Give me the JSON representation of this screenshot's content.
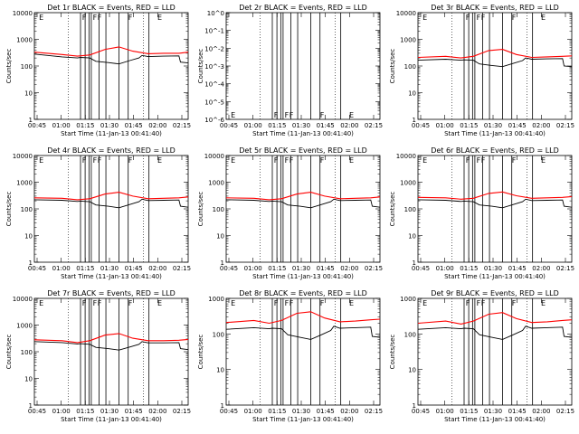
{
  "chart_data": [
    {
      "type": "line",
      "title": "Det 1r BLACK = Events, RED = LLD",
      "ylabel": "Counts/sec",
      "xlabel": "Start Time (11-Jan-13 00:41:40)",
      "x_ticks": [
        "00:45",
        "01:00",
        "01:15",
        "01:30",
        "01:45",
        "02:00",
        "02:15"
      ],
      "y_ticks": [
        "1",
        "10",
        "100",
        "1000",
        "10000"
      ],
      "ylim": [
        1,
        10000
      ],
      "x_range_min": [
        0,
        100
      ],
      "series": [
        {
          "name": "LLD",
          "color": "#ff0000",
          "x": [
            0,
            18,
            28,
            36,
            46,
            55,
            64,
            74,
            84,
            94,
            100
          ],
          "y": [
            330,
            270,
            235,
            260,
            420,
            520,
            360,
            290,
            300,
            300,
            330
          ]
        },
        {
          "name": "Events",
          "color": "#000000",
          "x": [
            0,
            18,
            28,
            30,
            36,
            40,
            48,
            55,
            62,
            68,
            70,
            74,
            84,
            94,
            95,
            100
          ],
          "y": [
            280,
            220,
            200,
            210,
            200,
            150,
            135,
            120,
            160,
            200,
            250,
            225,
            235,
            240,
            140,
            130
          ]
        }
      ],
      "vlines_solid": [
        30,
        33,
        35.5,
        37,
        42,
        46.5,
        55,
        61,
        74.5
      ],
      "vlines_dotted": [
        22,
        71
      ],
      "annotations": [
        "E",
        "F",
        "F",
        "F",
        "F",
        "E"
      ]
    },
    {
      "type": "line",
      "title": "Det 2r BLACK = Events, RED = LLD",
      "ylabel": "Counts/sec",
      "xlabel": "Start Time (11-Jan-13 00:41:40)",
      "x_ticks": [
        "00:45",
        "01:00",
        "01:15",
        "01:30",
        "01:45",
        "02:00",
        "02:15"
      ],
      "y_ticks": [
        "10^-6",
        "10^-5",
        "10^-4",
        "10^-3",
        "10^-2",
        "10^-1",
        "10^0"
      ],
      "ylim": [
        1e-06,
        1
      ],
      "x_range_min": [
        0,
        100
      ],
      "series": [],
      "vlines_solid": [
        30,
        33,
        35.5,
        37,
        42,
        46.5,
        55,
        61,
        74.5
      ],
      "vlines_dotted": [
        22,
        71
      ],
      "annotations": [
        "E",
        "F",
        "F",
        "F",
        "F",
        "E"
      ]
    },
    {
      "type": "line",
      "title": "Det 3r BLACK = Events, RED = LLD",
      "ylabel": "Counts/sec",
      "xlabel": "Start Time (11-Jan-13 00:41:40)",
      "x_ticks": [
        "00:45",
        "01:00",
        "01:15",
        "01:30",
        "01:45",
        "02:00",
        "02:15"
      ],
      "y_ticks": [
        "1",
        "10",
        "100",
        "1000",
        "10000"
      ],
      "ylim": [
        1,
        10000
      ],
      "x_range_min": [
        0,
        100
      ],
      "series": [
        {
          "name": "LLD",
          "color": "#ff0000",
          "x": [
            0,
            18,
            28,
            36,
            46,
            55,
            64,
            74,
            84,
            94,
            100
          ],
          "y": [
            210,
            230,
            200,
            230,
            380,
            420,
            270,
            210,
            220,
            230,
            240
          ]
        },
        {
          "name": "Events",
          "color": "#000000",
          "x": [
            0,
            18,
            28,
            30,
            36,
            40,
            48,
            55,
            62,
            68,
            70,
            74,
            84,
            94,
            95,
            100
          ],
          "y": [
            165,
            180,
            165,
            170,
            165,
            120,
            105,
            95,
            125,
            160,
            200,
            180,
            185,
            190,
            100,
            95
          ]
        }
      ],
      "vlines_solid": [
        30,
        33,
        35.5,
        37,
        42,
        46.5,
        55,
        61,
        74.5
      ],
      "vlines_dotted": [
        22,
        71
      ],
      "annotations": [
        "E",
        "F",
        "F",
        "F",
        "F",
        "E"
      ]
    },
    {
      "type": "line",
      "title": "Det 4r BLACK = Events, RED = LLD",
      "ylabel": "Counts/sec",
      "xlabel": "Start Time (11-Jan-13 00:41:40)",
      "x_ticks": [
        "00:45",
        "01:00",
        "01:15",
        "01:30",
        "01:45",
        "02:00",
        "02:15"
      ],
      "y_ticks": [
        "1",
        "10",
        "100",
        "1000",
        "10000"
      ],
      "ylim": [
        1,
        10000
      ],
      "x_range_min": [
        0,
        100
      ],
      "series": [
        {
          "name": "LLD",
          "color": "#ff0000",
          "x": [
            0,
            18,
            28,
            36,
            46,
            55,
            64,
            74,
            84,
            94,
            100
          ],
          "y": [
            260,
            250,
            220,
            240,
            360,
            420,
            300,
            240,
            250,
            260,
            280
          ]
        },
        {
          "name": "Events",
          "color": "#000000",
          "x": [
            0,
            18,
            28,
            30,
            36,
            40,
            48,
            55,
            62,
            68,
            70,
            74,
            84,
            94,
            95,
            100
          ],
          "y": [
            220,
            210,
            190,
            195,
            185,
            140,
            125,
            110,
            145,
            185,
            230,
            205,
            210,
            215,
            125,
            115
          ]
        }
      ],
      "vlines_solid": [
        30,
        33,
        35.5,
        37,
        42,
        46.5,
        55,
        61,
        74.5
      ],
      "vlines_dotted": [
        22,
        71
      ],
      "annotations": [
        "E",
        "F",
        "F",
        "F",
        "F",
        "E"
      ]
    },
    {
      "type": "line",
      "title": "Det 5r BLACK = Events, RED = LLD",
      "ylabel": "Counts/sec",
      "xlabel": "Start Time (11-Jan-13 00:41:40)",
      "x_ticks": [
        "00:45",
        "01:00",
        "01:15",
        "01:30",
        "01:45",
        "02:00",
        "02:15"
      ],
      "y_ticks": [
        "1",
        "10",
        "100",
        "1000",
        "10000"
      ],
      "ylim": [
        1,
        10000
      ],
      "x_range_min": [
        0,
        100
      ],
      "series": [
        {
          "name": "LLD",
          "color": "#ff0000",
          "x": [
            0,
            18,
            28,
            36,
            46,
            55,
            64,
            74,
            84,
            94,
            100
          ],
          "y": [
            260,
            250,
            220,
            240,
            360,
            420,
            300,
            240,
            250,
            260,
            280
          ]
        },
        {
          "name": "Events",
          "color": "#000000",
          "x": [
            0,
            18,
            28,
            30,
            36,
            40,
            48,
            55,
            62,
            68,
            70,
            74,
            84,
            94,
            95,
            100
          ],
          "y": [
            220,
            210,
            190,
            195,
            185,
            140,
            125,
            110,
            145,
            185,
            230,
            205,
            210,
            215,
            125,
            115
          ]
        }
      ],
      "vlines_solid": [
        30,
        33,
        35.5,
        37,
        42,
        46.5,
        55,
        61,
        74.5
      ],
      "vlines_dotted": [
        22,
        71
      ],
      "annotations": [
        "E",
        "F",
        "F",
        "F",
        "F",
        "E"
      ]
    },
    {
      "type": "line",
      "title": "Det 6r BLACK = Events, RED = LLD",
      "ylabel": "Counts/sec",
      "xlabel": "Start Time (11-Jan-13 00:41:40)",
      "x_ticks": [
        "00:45",
        "01:00",
        "01:15",
        "01:30",
        "01:45",
        "02:00",
        "02:15"
      ],
      "y_ticks": [
        "1",
        "10",
        "100",
        "1000",
        "10000"
      ],
      "ylim": [
        1,
        10000
      ],
      "x_range_min": [
        0,
        100
      ],
      "series": [
        {
          "name": "LLD",
          "color": "#ff0000",
          "x": [
            0,
            18,
            28,
            36,
            46,
            55,
            64,
            74,
            84,
            94,
            100
          ],
          "y": [
            270,
            260,
            230,
            250,
            380,
            430,
            310,
            250,
            260,
            270,
            290
          ]
        },
        {
          "name": "Events",
          "color": "#000000",
          "x": [
            0,
            18,
            28,
            30,
            36,
            40,
            48,
            55,
            62,
            68,
            70,
            74,
            84,
            94,
            95,
            100
          ],
          "y": [
            220,
            210,
            190,
            195,
            185,
            140,
            125,
            110,
            145,
            185,
            230,
            205,
            210,
            215,
            125,
            115
          ]
        }
      ],
      "vlines_solid": [
        30,
        33,
        35.5,
        37,
        42,
        46.5,
        55,
        61,
        74.5
      ],
      "vlines_dotted": [
        22,
        71
      ],
      "annotations": [
        "E",
        "F",
        "F",
        "F",
        "F",
        "E"
      ]
    },
    {
      "type": "line",
      "title": "Det 7r BLACK = Events, RED = LLD",
      "ylabel": "Counts/sec",
      "xlabel": "Start Time (11-Jan-13 00:41:40)",
      "x_ticks": [
        "00:45",
        "01:00",
        "01:15",
        "01:30",
        "01:45",
        "02:00",
        "02:15"
      ],
      "y_ticks": [
        "1",
        "10",
        "100",
        "1000",
        "10000"
      ],
      "ylim": [
        1,
        10000
      ],
      "x_range_min": [
        0,
        100
      ],
      "series": [
        {
          "name": "LLD",
          "color": "#ff0000",
          "x": [
            0,
            18,
            28,
            36,
            46,
            55,
            64,
            74,
            84,
            94,
            100
          ],
          "y": [
            280,
            260,
            220,
            260,
            420,
            480,
            320,
            260,
            260,
            270,
            290
          ]
        },
        {
          "name": "Events",
          "color": "#000000",
          "x": [
            0,
            18,
            28,
            30,
            36,
            40,
            48,
            55,
            62,
            68,
            70,
            74,
            84,
            94,
            95,
            100
          ],
          "y": [
            240,
            220,
            195,
            200,
            190,
            145,
            130,
            115,
            150,
            190,
            240,
            215,
            215,
            220,
            130,
            120
          ]
        }
      ],
      "vlines_solid": [
        30,
        33,
        35.5,
        37,
        42,
        46.5,
        55,
        61,
        74.5
      ],
      "vlines_dotted": [
        22,
        71
      ],
      "annotations": [
        "E",
        "F",
        "F",
        "F",
        "F",
        "E"
      ]
    },
    {
      "type": "line",
      "title": "Det 8r BLACK = Events, RED = LLD",
      "ylabel": "Counts/sec",
      "xlabel": "Start Time (11-Jan-13 00:41:40)",
      "x_ticks": [
        "00:45",
        "01:00",
        "01:15",
        "01:30",
        "01:45",
        "02:00",
        "02:15"
      ],
      "y_ticks": [
        "1",
        "10",
        "100",
        "1000"
      ],
      "ylim": [
        1,
        1000
      ],
      "x_range_min": [
        0,
        100
      ],
      "series": [
        {
          "name": "LLD",
          "color": "#ff0000",
          "x": [
            0,
            18,
            28,
            36,
            46,
            55,
            64,
            74,
            84,
            94,
            100
          ],
          "y": [
            210,
            240,
            200,
            240,
            380,
            420,
            280,
            220,
            230,
            250,
            260
          ]
        },
        {
          "name": "Events",
          "color": "#000000",
          "x": [
            0,
            18,
            28,
            30,
            36,
            40,
            48,
            55,
            62,
            68,
            70,
            74,
            84,
            94,
            95,
            100
          ],
          "y": [
            135,
            150,
            140,
            145,
            140,
            95,
            80,
            70,
            95,
            125,
            165,
            145,
            150,
            155,
            85,
            80
          ]
        }
      ],
      "vlines_solid": [
        30,
        33,
        35.5,
        37,
        42,
        46.5,
        55,
        61,
        74.5
      ],
      "vlines_dotted": [
        22,
        71
      ],
      "annotations": [
        "E",
        "F",
        "F",
        "F",
        "F",
        "E"
      ]
    },
    {
      "type": "line",
      "title": "Det 9r BLACK = Events, RED = LLD",
      "ylabel": "Counts/sec",
      "xlabel": "Start Time (11-Jan-13 00:41:40)",
      "x_ticks": [
        "00:45",
        "01:00",
        "01:15",
        "01:30",
        "01:45",
        "02:00",
        "02:15"
      ],
      "y_ticks": [
        "1",
        "10",
        "100",
        "1000"
      ],
      "ylim": [
        1,
        1000
      ],
      "x_range_min": [
        0,
        100
      ],
      "series": [
        {
          "name": "LLD",
          "color": "#ff0000",
          "x": [
            0,
            18,
            28,
            36,
            46,
            55,
            64,
            74,
            84,
            94,
            100
          ],
          "y": [
            200,
            230,
            190,
            230,
            360,
            400,
            270,
            210,
            220,
            240,
            250
          ]
        },
        {
          "name": "Events",
          "color": "#000000",
          "x": [
            0,
            18,
            28,
            30,
            36,
            40,
            48,
            55,
            62,
            68,
            70,
            74,
            84,
            94,
            95,
            100
          ],
          "y": [
            135,
            150,
            140,
            145,
            140,
            95,
            80,
            70,
            95,
            125,
            165,
            145,
            150,
            155,
            85,
            80
          ]
        }
      ],
      "vlines_solid": [
        30,
        33,
        35.5,
        37,
        42,
        46.5,
        55,
        61,
        74.5
      ],
      "vlines_dotted": [
        22,
        71
      ],
      "annotations": [
        "E",
        "F",
        "F",
        "F",
        "F",
        "E"
      ]
    }
  ]
}
